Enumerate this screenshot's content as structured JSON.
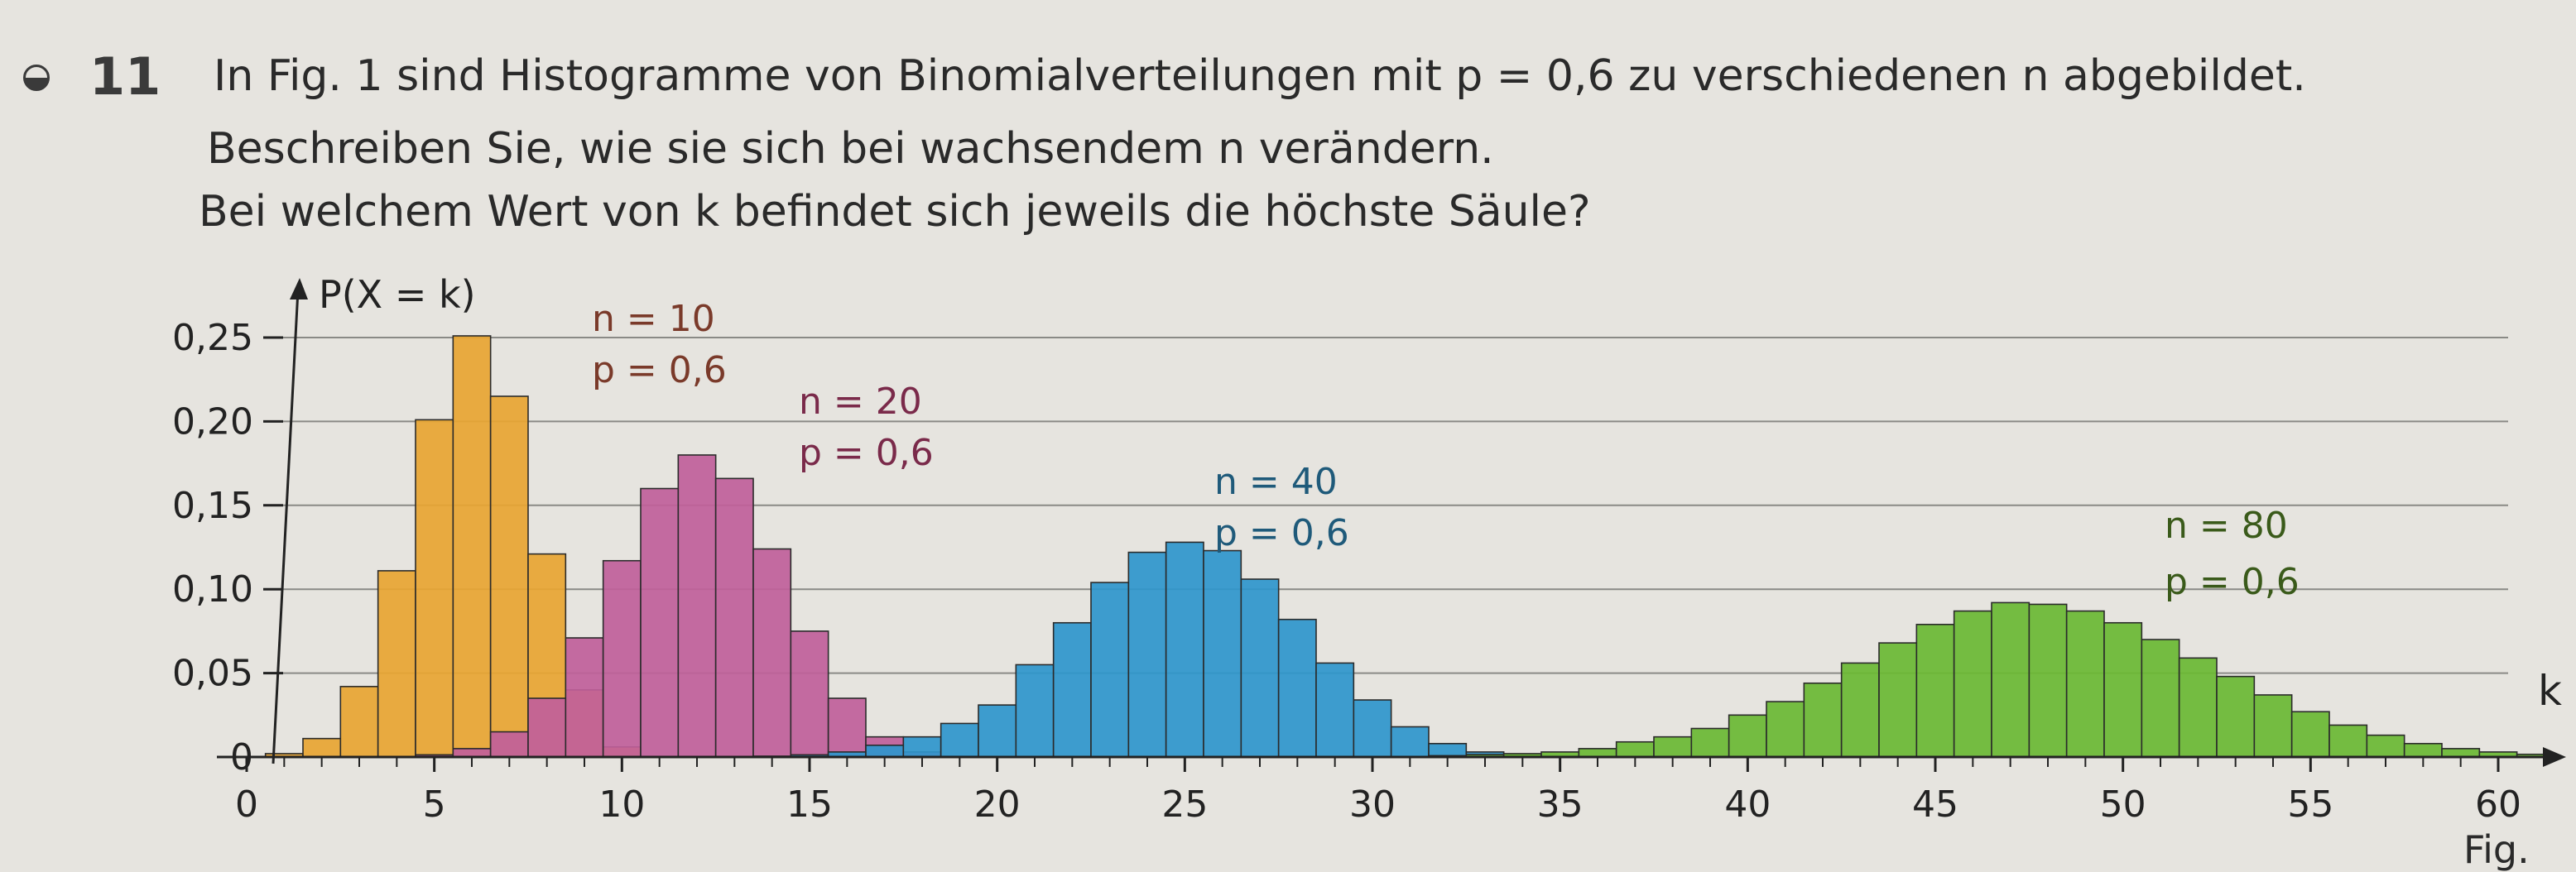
{
  "task": {
    "number": "11",
    "line1": "In Fig. 1 sind Histogramme von Binomialverteilungen mit  p = 0,6  zu verschiedenen n abgebildet.",
    "line2": "Beschreiben Sie, wie sie sich bei wachsendem n verändern.",
    "line3": "Bei welchem Wert von k befindet sich jeweils die höchste Säule?"
  },
  "figure_caption": "Fig.",
  "chart_data": {
    "type": "bar",
    "title": "",
    "xlabel": "k",
    "ylabel": "P(X = k)",
    "xlim": [
      0,
      60
    ],
    "ylim": [
      0,
      0.25
    ],
    "x_ticks": [
      0,
      5,
      10,
      15,
      20,
      25,
      30,
      35,
      40,
      45,
      50,
      55,
      60
    ],
    "x_tick_labels": [
      "0",
      "5",
      "10",
      "15",
      "20",
      "25",
      "30",
      "35",
      "40",
      "45",
      "50",
      "55",
      "60"
    ],
    "y_ticks": [
      0,
      0.05,
      0.1,
      0.15,
      0.2,
      0.25
    ],
    "y_tick_labels": [
      "0",
      "0,05",
      "0,10",
      "0,15",
      "0,20",
      "0,25"
    ],
    "grid": true,
    "series": [
      {
        "n": 10,
        "p": 0.6,
        "label_n": "n = 10",
        "label_p": "p = 0,6",
        "color": "#e8a532",
        "label_color": "#7a3a2a",
        "x": [
          0,
          1,
          2,
          3,
          4,
          5,
          6,
          7,
          8,
          9,
          10
        ],
        "values": [
          0.0001,
          0.002,
          0.011,
          0.042,
          0.111,
          0.201,
          0.251,
          0.215,
          0.121,
          0.04,
          0.006
        ]
      },
      {
        "n": 20,
        "p": 0.6,
        "label_n": "n = 20",
        "label_p": "p = 0,6",
        "color": "#c0609a",
        "label_color": "#7a2a4a",
        "x": [
          4,
          5,
          6,
          7,
          8,
          9,
          10,
          11,
          12,
          13,
          14,
          15,
          16,
          17,
          18,
          19,
          20
        ],
        "values": [
          0.0003,
          0.0013,
          0.005,
          0.015,
          0.035,
          0.071,
          0.117,
          0.16,
          0.18,
          0.166,
          0.124,
          0.075,
          0.035,
          0.012,
          0.003,
          0.0005,
          0.0001
        ]
      },
      {
        "n": 40,
        "p": 0.6,
        "label_n": "n = 40",
        "label_p": "p = 0,6",
        "color": "#2f96cc",
        "label_color": "#1f5a7a",
        "x": [
          14,
          15,
          16,
          17,
          18,
          19,
          20,
          21,
          22,
          23,
          24,
          25,
          26,
          27,
          28,
          29,
          30,
          31,
          32,
          33,
          34
        ],
        "values": [
          0.0005,
          0.0013,
          0.003,
          0.007,
          0.012,
          0.02,
          0.031,
          0.055,
          0.08,
          0.104,
          0.122,
          0.128,
          0.123,
          0.106,
          0.082,
          0.056,
          0.034,
          0.018,
          0.008,
          0.003,
          0.001
        ]
      },
      {
        "n": 80,
        "p": 0.6,
        "label_n": "n = 80",
        "label_p": "p = 0,6",
        "color": "#6ab833",
        "label_color": "#3a5a1a",
        "x": [
          32,
          33,
          34,
          35,
          36,
          37,
          38,
          39,
          40,
          41,
          42,
          43,
          44,
          45,
          46,
          47,
          48,
          49,
          50,
          51,
          52,
          53,
          54,
          55,
          56,
          57,
          58,
          59,
          60,
          61
        ],
        "values": [
          0.0008,
          0.0015,
          0.002,
          0.003,
          0.005,
          0.009,
          0.012,
          0.017,
          0.025,
          0.033,
          0.044,
          0.056,
          0.068,
          0.079,
          0.087,
          0.092,
          0.091,
          0.087,
          0.08,
          0.07,
          0.059,
          0.048,
          0.037,
          0.027,
          0.019,
          0.013,
          0.008,
          0.005,
          0.003,
          0.0016
        ]
      }
    ]
  }
}
